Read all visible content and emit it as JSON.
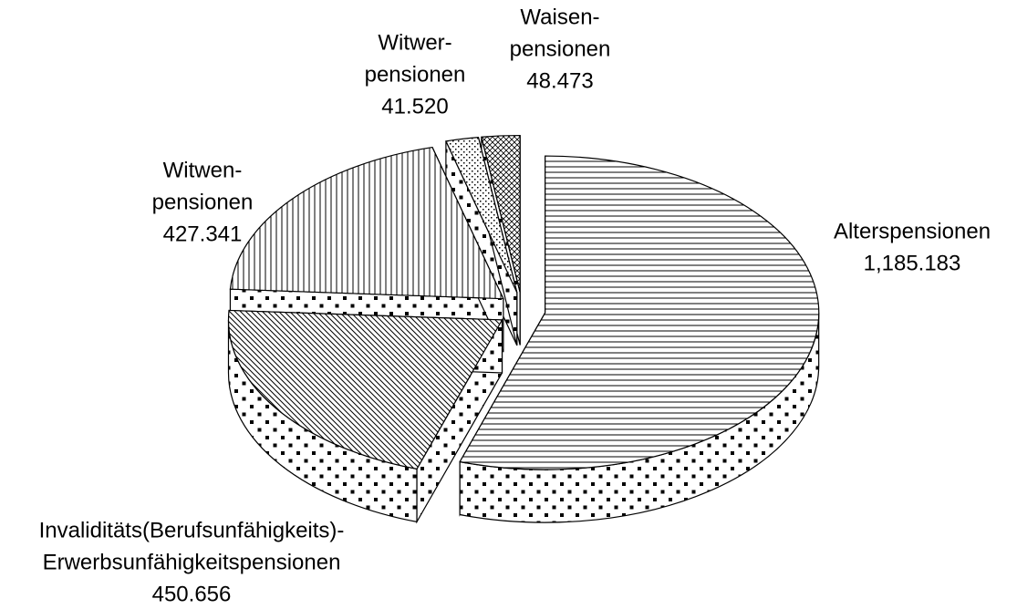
{
  "chart_data": {
    "type": "pie3d",
    "categories": [
      [
        "Alterspensionen"
      ],
      [
        "Invaliditäts(Berufsunfähigkeits)-",
        "Erwerbsunfähigkeitspensionen"
      ],
      [
        "Witwen-",
        "pensionen"
      ],
      [
        "Witwer-",
        "pensionen"
      ],
      [
        "Waisen-",
        "pensionen"
      ]
    ],
    "values": [
      1185.183,
      450.656,
      427.341,
      41.52,
      48.473
    ],
    "value_labels": [
      "1,185.183",
      "450.656",
      "427.341",
      "41.520",
      "48.473"
    ]
  }
}
